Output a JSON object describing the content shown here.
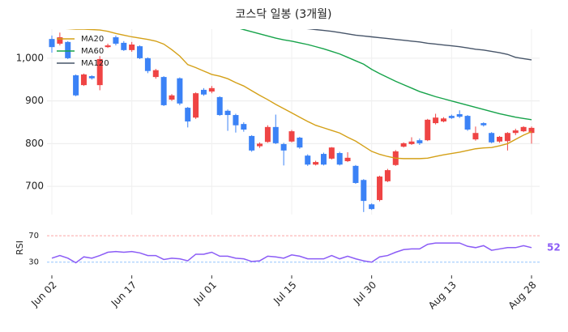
{
  "chart_data": [
    {
      "type": "candlestick",
      "title": "코스닥 일봉 (3개월)",
      "categories": [
        "Jun 02",
        null,
        null,
        null,
        null,
        null,
        null,
        null,
        null,
        null,
        "Jun 17",
        null,
        null,
        null,
        null,
        null,
        null,
        null,
        null,
        null,
        "Jul 01",
        null,
        null,
        null,
        null,
        null,
        null,
        null,
        null,
        null,
        "Jul 15",
        null,
        null,
        null,
        null,
        null,
        null,
        null,
        null,
        null,
        "Jul 30",
        null,
        null,
        null,
        null,
        null,
        null,
        null,
        null,
        null,
        "Aug 13",
        null,
        null,
        null,
        null,
        null,
        null,
        null,
        null,
        null,
        "Aug 28"
      ],
      "open": [
        1045,
        1034,
        1038,
        960,
        937,
        958,
        937,
        1026,
        1049,
        1036,
        1019,
        1028,
        1000,
        956,
        956,
        903,
        953,
        884,
        861,
        926,
        922,
        909,
        877,
        867,
        846,
        818,
        794,
        804,
        839,
        799,
        805,
        814,
        772,
        751,
        776,
        765,
        778,
        759,
        748,
        715,
        658,
        668,
        712,
        750,
        793,
        799,
        808,
        808,
        848,
        852,
        865,
        869,
        865,
        810,
        848,
        825,
        805,
        806,
        825,
        829,
        825
      ],
      "high": [
        1053,
        1060,
        1040,
        962,
        964,
        960,
        1005,
        1034,
        1053,
        1040,
        1038,
        1030,
        1002,
        975,
        958,
        916,
        955,
        886,
        920,
        930,
        935,
        911,
        880,
        870,
        850,
        820,
        803,
        843,
        868,
        802,
        832,
        816,
        775,
        760,
        779,
        792,
        781,
        780,
        750,
        717,
        660,
        725,
        741,
        785,
        803,
        815,
        812,
        858,
        870,
        862,
        868,
        878,
        867,
        840,
        850,
        827,
        818,
        827,
        835,
        841,
        840
      ],
      "low": [
        1013,
        1030,
        998,
        911,
        935,
        950,
        925,
        1024,
        1030,
        1017,
        1015,
        998,
        965,
        952,
        888,
        900,
        890,
        838,
        858,
        912,
        918,
        865,
        830,
        826,
        828,
        781,
        790,
        802,
        799,
        749,
        803,
        788,
        748,
        749,
        749,
        763,
        749,
        757,
        706,
        640,
        645,
        665,
        710,
        748,
        791,
        797,
        797,
        806,
        845,
        850,
        858,
        860,
        830,
        807,
        840,
        801,
        802,
        784,
        820,
        827,
        800
      ],
      "close": [
        1026,
        1049,
        1000,
        913,
        962,
        953,
        998,
        1030,
        1034,
        1019,
        1032,
        1000,
        970,
        972,
        890,
        913,
        894,
        852,
        918,
        915,
        930,
        867,
        867,
        843,
        833,
        784,
        800,
        839,
        801,
        784,
        829,
        791,
        751,
        757,
        751,
        791,
        751,
        767,
        708,
        666,
        647,
        723,
        738,
        782,
        801,
        805,
        801,
        856,
        861,
        859,
        860,
        863,
        833,
        825,
        843,
        803,
        816,
        825,
        831,
        839,
        837
      ],
      "up_color": "#ef4444",
      "down_color": "#3b82f6",
      "series": [
        {
          "name": "MA20",
          "color": "#d4a017",
          "values": [
            1070,
            1070,
            1069,
            1068,
            1068,
            1067,
            1066,
            1063,
            1058,
            1054,
            1050,
            1047,
            1044,
            1040,
            1033,
            1020,
            1005,
            985,
            978,
            970,
            962,
            958,
            952,
            943,
            935,
            924,
            913,
            903,
            892,
            882,
            872,
            862,
            852,
            843,
            837,
            831,
            825,
            815,
            806,
            794,
            782,
            775,
            770,
            766,
            765,
            765,
            765,
            766,
            770,
            774,
            777,
            780,
            784,
            788,
            790,
            791,
            795,
            800,
            810,
            820,
            828
          ]
        },
        {
          "name": "MA60",
          "color": "#16a34a",
          "values": [
            null,
            null,
            null,
            null,
            null,
            null,
            null,
            null,
            null,
            null,
            null,
            null,
            null,
            null,
            null,
            null,
            null,
            null,
            null,
            null,
            null,
            null,
            null,
            1072,
            1067,
            1062,
            1057,
            1052,
            1047,
            1043,
            1040,
            1036,
            1032,
            1027,
            1022,
            1016,
            1010,
            1002,
            994,
            986,
            974,
            964,
            955,
            946,
            938,
            930,
            922,
            916,
            910,
            905,
            900,
            895,
            890,
            885,
            880,
            875,
            870,
            866,
            862,
            859,
            856
          ]
        },
        {
          "name": "MA120",
          "color": "#475569",
          "values": [
            null,
            null,
            null,
            null,
            null,
            null,
            null,
            null,
            null,
            null,
            null,
            null,
            null,
            null,
            null,
            null,
            null,
            null,
            null,
            null,
            null,
            null,
            null,
            null,
            null,
            null,
            null,
            null,
            null,
            null,
            1072,
            1071,
            1069,
            1067,
            1065,
            1063,
            1060,
            1057,
            1054,
            1052,
            1050,
            1048,
            1046,
            1044,
            1042,
            1040,
            1038,
            1035,
            1033,
            1031,
            1029,
            1027,
            1024,
            1021,
            1019,
            1016,
            1013,
            1009,
            1002,
            999,
            996
          ]
        }
      ],
      "ylim": [
        634,
        1068
      ],
      "yticks": [
        700,
        800,
        900,
        {
          "value": 1000,
          "label": "1,000"
        }
      ],
      "grid": true,
      "legend": "upper left"
    },
    {
      "type": "line",
      "ylabel": "RSI",
      "color": "#8b5cf6",
      "values": [
        36,
        40,
        36,
        29,
        38,
        36,
        40,
        45,
        46,
        45,
        46,
        44,
        40,
        40,
        34,
        36,
        35,
        32,
        42,
        42,
        45,
        39,
        39,
        36,
        35,
        31,
        32,
        39,
        38,
        36,
        41,
        39,
        35,
        35,
        35,
        40,
        35,
        39,
        35,
        32,
        30,
        38,
        40,
        45,
        49,
        50,
        50,
        57,
        59,
        59,
        59,
        59,
        54,
        52,
        55,
        48,
        50,
        52,
        52,
        55,
        52
      ],
      "ylim": [
        10,
        80
      ],
      "yticks": [
        30,
        70
      ],
      "ytick_colors": [
        "#93c5fd",
        "#fca5a5"
      ],
      "last_value_label": true
    }
  ]
}
